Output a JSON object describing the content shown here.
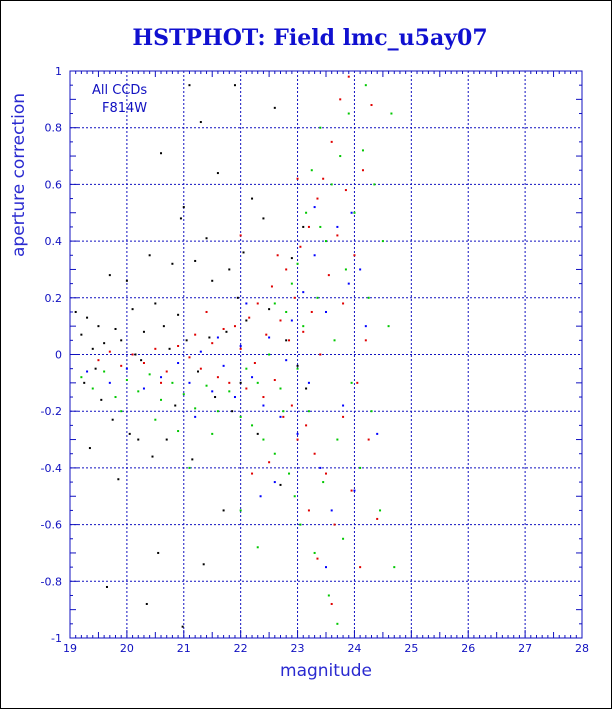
{
  "chart_data": {
    "type": "scatter",
    "title": "HSTPHOT: Field lmc_u5ay07",
    "xlabel": "magnitude",
    "ylabel": "aperture correction",
    "xlim": [
      19,
      28
    ],
    "ylim": [
      -1,
      1
    ],
    "x_ticks": [
      "19",
      "20",
      "21",
      "22",
      "23",
      "24",
      "25",
      "26",
      "27",
      "28"
    ],
    "y_ticks": [
      "-1",
      "-0.8",
      "-0.6",
      "-0.4",
      "-0.2",
      "0",
      "0.2",
      "0.4",
      "0.6",
      "0.8",
      "1"
    ],
    "grid": true,
    "annotations": [
      "All CCDs",
      "F814W"
    ],
    "colors": {
      "axis": "#1010c0",
      "grid": "#1010c0",
      "title": "#1010d0",
      "series": [
        "#000000",
        "#e00000",
        "#00c800",
        "#0000ff"
      ]
    },
    "series": [
      {
        "color": "#000000",
        "points": [
          [
            19.1,
            0.15
          ],
          [
            19.2,
            0.07
          ],
          [
            19.25,
            -0.1
          ],
          [
            19.3,
            0.13
          ],
          [
            19.35,
            -0.33
          ],
          [
            19.4,
            0.02
          ],
          [
            19.5,
            0.1
          ],
          [
            19.55,
            -0.16
          ],
          [
            19.6,
            0.04
          ],
          [
            19.65,
            -0.82
          ],
          [
            19.7,
            0.28
          ],
          [
            19.75,
            -0.23
          ],
          [
            19.8,
            0.09
          ],
          [
            19.85,
            -0.44
          ],
          [
            19.9,
            0.05
          ],
          [
            20.0,
            0.26
          ],
          [
            20.05,
            -0.28
          ],
          [
            20.1,
            0.16
          ],
          [
            20.15,
            0.0
          ],
          [
            20.2,
            -0.3
          ],
          [
            20.3,
            0.08
          ],
          [
            20.35,
            -0.88
          ],
          [
            20.4,
            0.35
          ],
          [
            20.45,
            -0.36
          ],
          [
            20.55,
            -0.7
          ],
          [
            20.6,
            0.71
          ],
          [
            20.65,
            0.1
          ],
          [
            20.7,
            -0.3
          ],
          [
            20.75,
            0.02
          ],
          [
            20.8,
            0.32
          ],
          [
            20.85,
            -0.18
          ],
          [
            20.95,
            0.48
          ],
          [
            20.98,
            -0.96
          ],
          [
            21.0,
            0.52
          ],
          [
            21.05,
            0.05
          ],
          [
            21.1,
            0.95
          ],
          [
            21.15,
            -0.37
          ],
          [
            21.2,
            0.33
          ],
          [
            21.25,
            -0.06
          ],
          [
            21.3,
            0.82
          ],
          [
            21.35,
            -0.74
          ],
          [
            21.4,
            0.41
          ],
          [
            21.45,
            0.06
          ],
          [
            21.5,
            0.26
          ],
          [
            21.55,
            -0.15
          ],
          [
            21.6,
            0.64
          ],
          [
            21.7,
            -0.55
          ],
          [
            21.75,
            0.08
          ],
          [
            21.8,
            0.3
          ],
          [
            21.85,
            -0.2
          ],
          [
            21.9,
            0.95
          ],
          [
            21.95,
            0.2
          ],
          [
            22.0,
            -0.1
          ],
          [
            22.05,
            0.36
          ],
          [
            22.1,
            0.12
          ],
          [
            22.2,
            0.55
          ],
          [
            22.3,
            -0.28
          ],
          [
            22.4,
            0.48
          ],
          [
            22.5,
            0.16
          ],
          [
            22.6,
            0.87
          ],
          [
            22.7,
            -0.46
          ],
          [
            22.8,
            0.05
          ],
          [
            22.9,
            0.34
          ],
          [
            23.0,
            -0.04
          ],
          [
            23.1,
            0.45
          ],
          [
            23.15,
            -0.12
          ],
          [
            20.5,
            0.18
          ],
          [
            20.25,
            -0.02
          ],
          [
            19.45,
            -0.05
          ],
          [
            20.9,
            0.14
          ]
        ]
      },
      {
        "color": "#e00000",
        "points": [
          [
            19.5,
            -0.02
          ],
          [
            19.7,
            0.01
          ],
          [
            19.9,
            -0.04
          ],
          [
            20.1,
            0.0
          ],
          [
            20.3,
            -0.03
          ],
          [
            20.5,
            0.02
          ],
          [
            20.7,
            -0.06
          ],
          [
            20.9,
            0.03
          ],
          [
            21.1,
            -0.01
          ],
          [
            21.2,
            0.07
          ],
          [
            21.3,
            -0.05
          ],
          [
            21.5,
            0.04
          ],
          [
            21.6,
            -0.08
          ],
          [
            21.7,
            0.09
          ],
          [
            21.8,
            -0.1
          ],
          [
            21.9,
            0.1
          ],
          [
            22.0,
            0.02
          ],
          [
            22.1,
            -0.12
          ],
          [
            22.15,
            0.13
          ],
          [
            22.25,
            -0.03
          ],
          [
            22.3,
            0.18
          ],
          [
            22.4,
            -0.15
          ],
          [
            22.45,
            0.07
          ],
          [
            22.55,
            0.24
          ],
          [
            22.6,
            -0.09
          ],
          [
            22.7,
            0.12
          ],
          [
            22.75,
            -0.22
          ],
          [
            22.8,
            0.3
          ],
          [
            22.85,
            0.05
          ],
          [
            22.9,
            -0.18
          ],
          [
            22.95,
            0.2
          ],
          [
            23.0,
            -0.3
          ],
          [
            23.05,
            0.38
          ],
          [
            23.1,
            0.08
          ],
          [
            23.15,
            -0.25
          ],
          [
            23.2,
            0.45
          ],
          [
            23.25,
            0.15
          ],
          [
            23.3,
            -0.35
          ],
          [
            23.35,
            0.55
          ],
          [
            23.4,
            0.0
          ],
          [
            23.45,
            0.62
          ],
          [
            23.5,
            -0.42
          ],
          [
            23.55,
            0.28
          ],
          [
            23.6,
            0.75
          ],
          [
            23.65,
            -0.6
          ],
          [
            23.7,
            0.42
          ],
          [
            23.75,
            0.9
          ],
          [
            23.8,
            -0.22
          ],
          [
            23.85,
            0.58
          ],
          [
            23.9,
            0.98
          ],
          [
            23.95,
            -0.48
          ],
          [
            24.0,
            0.35
          ],
          [
            24.1,
            -0.75
          ],
          [
            24.15,
            0.65
          ],
          [
            24.25,
            -0.3
          ],
          [
            24.3,
            0.88
          ],
          [
            24.4,
            -0.58
          ],
          [
            22.0,
            0.42
          ],
          [
            22.5,
            -0.38
          ],
          [
            23.2,
            -0.55
          ],
          [
            23.0,
            0.62
          ],
          [
            22.2,
            -0.42
          ],
          [
            23.6,
            -0.88
          ],
          [
            23.8,
            0.18
          ],
          [
            24.2,
            0.05
          ],
          [
            21.4,
            0.15
          ],
          [
            20.6,
            -0.1
          ],
          [
            22.65,
            0.35
          ],
          [
            23.35,
            -0.72
          ],
          [
            24.05,
            -0.1
          ]
        ]
      },
      {
        "color": "#00c800",
        "points": [
          [
            19.2,
            -0.08
          ],
          [
            19.4,
            -0.12
          ],
          [
            19.6,
            -0.06
          ],
          [
            19.8,
            -0.15
          ],
          [
            20.0,
            -0.09
          ],
          [
            20.2,
            -0.13
          ],
          [
            20.4,
            -0.07
          ],
          [
            20.6,
            -0.16
          ],
          [
            20.8,
            -0.1
          ],
          [
            21.0,
            -0.14
          ],
          [
            21.2,
            -0.19
          ],
          [
            21.4,
            -0.11
          ],
          [
            21.6,
            -0.2
          ],
          [
            21.8,
            -0.13
          ],
          [
            22.0,
            -0.22
          ],
          [
            22.1,
            -0.05
          ],
          [
            22.2,
            -0.25
          ],
          [
            22.3,
            -0.1
          ],
          [
            22.4,
            -0.3
          ],
          [
            22.5,
            0.0
          ],
          [
            22.6,
            -0.35
          ],
          [
            22.7,
            -0.12
          ],
          [
            22.8,
            0.15
          ],
          [
            22.85,
            -0.42
          ],
          [
            22.9,
            0.25
          ],
          [
            22.95,
            -0.5
          ],
          [
            23.0,
            0.32
          ],
          [
            23.05,
            -0.6
          ],
          [
            23.1,
            0.1
          ],
          [
            23.15,
            0.5
          ],
          [
            23.2,
            -0.2
          ],
          [
            23.25,
            0.65
          ],
          [
            23.3,
            -0.7
          ],
          [
            23.35,
            0.2
          ],
          [
            23.4,
            0.8
          ],
          [
            23.45,
            -0.45
          ],
          [
            23.5,
            0.4
          ],
          [
            23.55,
            -0.85
          ],
          [
            23.6,
            0.6
          ],
          [
            23.65,
            0.05
          ],
          [
            23.7,
            -0.3
          ],
          [
            23.75,
            0.7
          ],
          [
            23.8,
            -0.65
          ],
          [
            23.85,
            0.3
          ],
          [
            23.9,
            0.85
          ],
          [
            23.95,
            -0.1
          ],
          [
            24.0,
            0.5
          ],
          [
            24.1,
            -0.4
          ],
          [
            24.15,
            0.72
          ],
          [
            24.25,
            0.2
          ],
          [
            24.3,
            -0.2
          ],
          [
            24.35,
            0.6
          ],
          [
            24.45,
            -0.55
          ],
          [
            24.5,
            0.4
          ],
          [
            24.6,
            0.1
          ],
          [
            24.7,
            -0.75
          ],
          [
            24.65,
            0.85
          ],
          [
            22.0,
            -0.55
          ],
          [
            21.5,
            -0.28
          ],
          [
            20.5,
            -0.23
          ],
          [
            19.9,
            -0.2
          ],
          [
            22.6,
            0.18
          ],
          [
            23.0,
            -0.05
          ],
          [
            23.7,
            -0.95
          ],
          [
            21.1,
            -0.4
          ],
          [
            22.3,
            -0.68
          ],
          [
            24.2,
            0.95
          ],
          [
            23.4,
            0.45
          ],
          [
            20.9,
            -0.27
          ],
          [
            22.75,
            -0.2
          ]
        ]
      },
      {
        "color": "#0000ff",
        "points": [
          [
            19.3,
            -0.06
          ],
          [
            19.7,
            -0.1
          ],
          [
            20.0,
            -0.05
          ],
          [
            20.3,
            -0.12
          ],
          [
            20.6,
            -0.08
          ],
          [
            20.9,
            -0.03
          ],
          [
            21.1,
            -0.1
          ],
          [
            21.3,
            0.01
          ],
          [
            21.5,
            -0.13
          ],
          [
            21.7,
            -0.04
          ],
          [
            21.9,
            -0.15
          ],
          [
            22.0,
            0.03
          ],
          [
            22.2,
            -0.08
          ],
          [
            22.4,
            -0.18
          ],
          [
            22.5,
            0.06
          ],
          [
            22.7,
            -0.22
          ],
          [
            22.8,
            -0.02
          ],
          [
            22.9,
            0.12
          ],
          [
            23.0,
            -0.28
          ],
          [
            23.1,
            0.22
          ],
          [
            23.2,
            -0.1
          ],
          [
            23.3,
            0.35
          ],
          [
            23.4,
            -0.4
          ],
          [
            23.5,
            0.15
          ],
          [
            23.6,
            -0.55
          ],
          [
            23.7,
            0.45
          ],
          [
            23.8,
            -0.18
          ],
          [
            23.9,
            0.25
          ],
          [
            24.0,
            -0.48
          ],
          [
            24.2,
            0.1
          ],
          [
            24.4,
            -0.28
          ],
          [
            22.1,
            0.18
          ],
          [
            21.6,
            0.06
          ],
          [
            23.3,
            0.52
          ],
          [
            23.5,
            -0.75
          ],
          [
            22.6,
            -0.45
          ],
          [
            24.1,
            0.3
          ],
          [
            23.95,
            0.5
          ],
          [
            21.2,
            -0.22
          ],
          [
            22.35,
            -0.5
          ]
        ]
      }
    ]
  }
}
